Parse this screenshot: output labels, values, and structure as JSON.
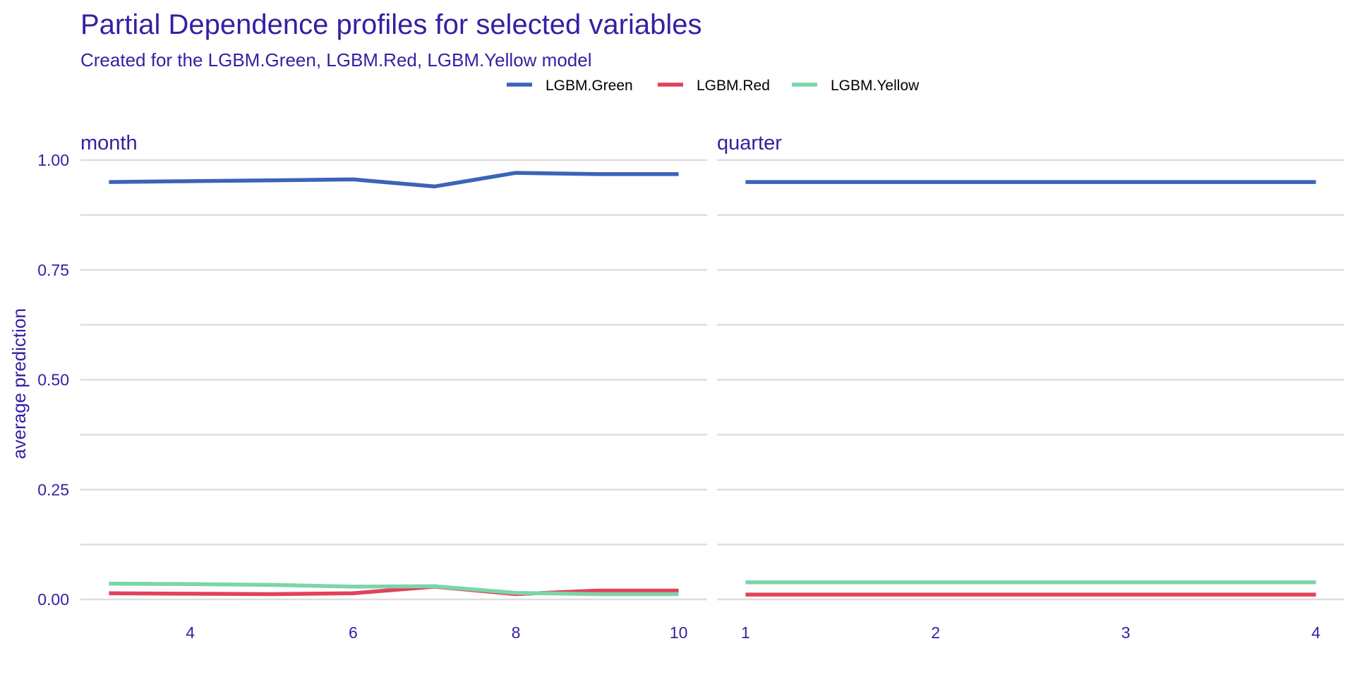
{
  "chart_data": {
    "type": "line",
    "title": "Partial Dependence profiles for selected variables",
    "subtitle": "Created for the LGBM.Green, LGBM.Red, LGBM.Yellow model",
    "ylabel": "average prediction",
    "xlabel": "",
    "ylim": [
      0,
      1.0
    ],
    "y_ticks": [
      0.0,
      0.25,
      0.5,
      0.75,
      1.0
    ],
    "y_tick_labels": [
      "0.00",
      "0.25",
      "0.50",
      "0.75",
      "1.00"
    ],
    "legend": {
      "position": "top",
      "entries": [
        {
          "name": "LGBM.Green",
          "color": "#3A64B7"
        },
        {
          "name": "LGBM.Red",
          "color": "#E2415C"
        },
        {
          "name": "LGBM.Yellow",
          "color": "#7CD5A9"
        }
      ]
    },
    "panels": [
      {
        "variable": "month",
        "xlim": [
          2.65,
          10.35
        ],
        "x_ticks": [
          4,
          6,
          8,
          10
        ],
        "x_tick_labels": [
          "4",
          "6",
          "8",
          "10"
        ],
        "series": [
          {
            "name": "LGBM.Green",
            "x": [
              3,
              4,
              5,
              6,
              7,
              8,
              9,
              10
            ],
            "y": [
              0.95,
              0.952,
              0.954,
              0.956,
              0.94,
              0.971,
              0.968,
              0.968
            ]
          },
          {
            "name": "LGBM.Red",
            "x": [
              3,
              4,
              5,
              6,
              7,
              8,
              9,
              10
            ],
            "y": [
              0.014,
              0.013,
              0.012,
              0.014,
              0.029,
              0.012,
              0.02,
              0.02
            ]
          },
          {
            "name": "LGBM.Yellow",
            "x": [
              3,
              4,
              5,
              6,
              7,
              8,
              9,
              10
            ],
            "y": [
              0.036,
              0.035,
              0.033,
              0.029,
              0.03,
              0.015,
              0.012,
              0.012
            ]
          }
        ]
      },
      {
        "variable": "quarter",
        "xlim": [
          0.85,
          4.15
        ],
        "x_ticks": [
          1,
          2,
          3,
          4
        ],
        "x_tick_labels": [
          "1",
          "2",
          "3",
          "4"
        ],
        "series": [
          {
            "name": "LGBM.Green",
            "x": [
              1,
              2,
              3,
              4
            ],
            "y": [
              0.95,
              0.95,
              0.95,
              0.95
            ]
          },
          {
            "name": "LGBM.Red",
            "x": [
              1,
              2,
              3,
              4
            ],
            "y": [
              0.011,
              0.011,
              0.011,
              0.011
            ]
          },
          {
            "name": "LGBM.Yellow",
            "x": [
              1,
              2,
              3,
              4
            ],
            "y": [
              0.039,
              0.039,
              0.039,
              0.039
            ]
          }
        ]
      }
    ]
  }
}
